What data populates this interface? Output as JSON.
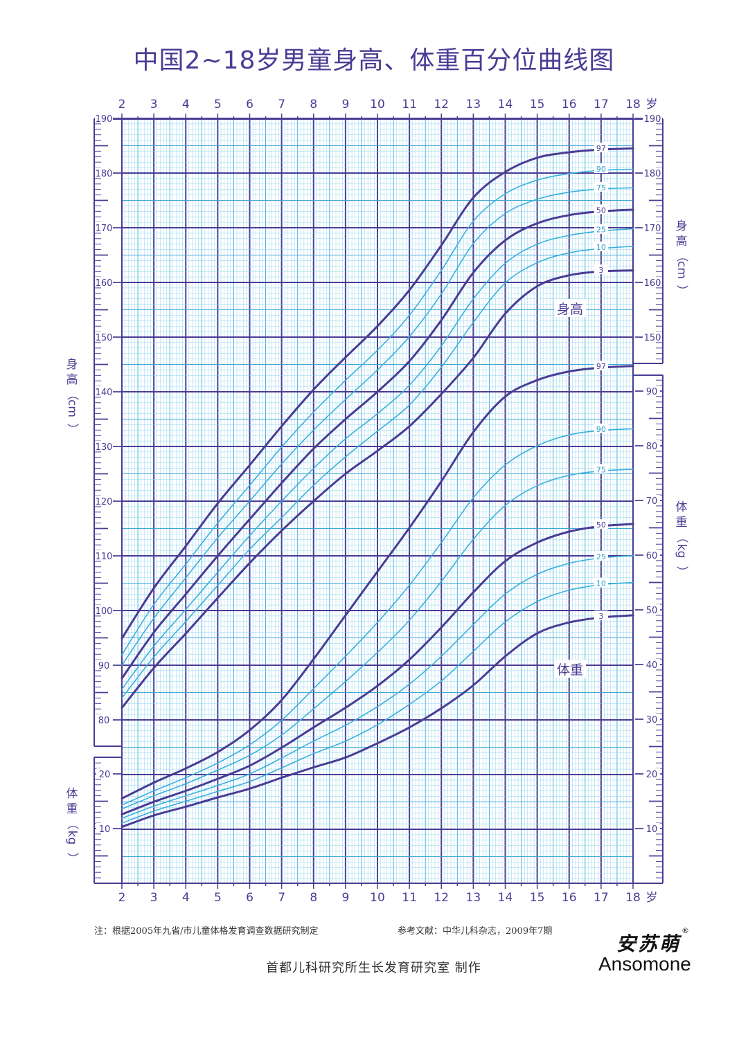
{
  "title": "中国2~18岁男童身高、体重百分位曲线图",
  "note": "注：根据2005年九省/市儿童体格发育调查数据研究制定",
  "reference": "参考文献：中华儿科杂志，2009年7期",
  "maker": "首都儿科研究所生长发育研究室  制作",
  "brand": {
    "cn": "安苏萌",
    "reg": "®",
    "en": "Ansomone"
  },
  "colors": {
    "major": "#4a3c94",
    "minor": "#3ab0dd",
    "grid": "#8fd3ef",
    "background": "#ffffff"
  },
  "chart_data": {
    "type": "line",
    "x": {
      "ticks": [
        2,
        3,
        4,
        5,
        6,
        7,
        8,
        9,
        10,
        11,
        12,
        13,
        14,
        15,
        16,
        17,
        18
      ],
      "unit": "岁",
      "range": [
        2,
        18
      ]
    },
    "height_axis": {
      "label_chars": [
        "身",
        "高",
        "（",
        "cm",
        "）"
      ],
      "range": [
        75,
        190
      ],
      "ticks_left": [
        80,
        90,
        100,
        110,
        120,
        130,
        140,
        150,
        160,
        170,
        180,
        190
      ],
      "ticks_right": [
        150,
        160,
        170,
        180,
        190
      ]
    },
    "weight_axis": {
      "label_chars": [
        "体",
        "重",
        "（",
        "kg",
        "）"
      ],
      "range": [
        0,
        95
      ],
      "ticks_left": [
        10,
        20
      ],
      "ticks_right": [
        10,
        20,
        30,
        40,
        50,
        60,
        70,
        80,
        90
      ]
    },
    "curve_label_height": "身高",
    "curve_label_weight": "体重",
    "ages": [
      2,
      3,
      4,
      5,
      6,
      7,
      8,
      9,
      10,
      11,
      12,
      13,
      14,
      15,
      16,
      17,
      18
    ],
    "height_series": [
      {
        "name": "97",
        "values": [
          94.9,
          104.1,
          111.8,
          119.6,
          126.6,
          133.7,
          140.4,
          146.3,
          152.0,
          158.6,
          166.8,
          175.5,
          180.2,
          182.8,
          183.8,
          184.3,
          184.5
        ]
      },
      {
        "name": "90",
        "values": [
          91.9,
          101.1,
          108.5,
          116.0,
          122.9,
          129.9,
          136.3,
          142.1,
          147.6,
          154.0,
          162.2,
          171.2,
          176.2,
          178.7,
          179.9,
          180.5,
          180.7
        ]
      },
      {
        "name": "75",
        "values": [
          90.0,
          98.6,
          106.0,
          113.3,
          120.0,
          126.8,
          133.0,
          138.6,
          144.0,
          150.1,
          157.9,
          167.1,
          172.6,
          175.2,
          176.5,
          177.1,
          177.3
        ]
      },
      {
        "name": "50",
        "values": [
          87.6,
          96.0,
          103.0,
          110.0,
          116.7,
          123.3,
          129.6,
          135.0,
          140.0,
          145.6,
          153.1,
          161.8,
          167.7,
          170.8,
          172.3,
          173.0,
          173.3
        ]
      },
      {
        "name": "25",
        "values": [
          85.6,
          93.5,
          100.2,
          107.0,
          113.7,
          120.0,
          126.0,
          131.4,
          136.0,
          141.2,
          148.4,
          157.0,
          163.5,
          167.0,
          168.6,
          169.4,
          169.8
        ]
      },
      {
        "name": "10",
        "values": [
          84.0,
          91.5,
          98.0,
          104.6,
          111.2,
          117.0,
          122.9,
          128.1,
          132.8,
          137.6,
          144.5,
          152.7,
          159.9,
          163.6,
          165.4,
          166.2,
          166.6
        ]
      },
      {
        "name": "3",
        "values": [
          82.2,
          89.5,
          95.8,
          102.3,
          108.7,
          114.6,
          120.0,
          125.0,
          129.2,
          133.7,
          139.6,
          146.2,
          154.3,
          159.3,
          161.3,
          162.0,
          162.2
        ]
      }
    ],
    "weight_series": [
      {
        "name": "97",
        "values": [
          15.5,
          18.4,
          21.0,
          24.0,
          28.0,
          33.5,
          41.0,
          49.0,
          57.0,
          65.0,
          73.5,
          82.5,
          89.0,
          92.0,
          93.6,
          94.3,
          94.6
        ]
      },
      {
        "name": "90",
        "values": [
          14.3,
          16.9,
          19.3,
          22.0,
          25.3,
          29.8,
          35.6,
          41.5,
          47.7,
          54.5,
          62.3,
          70.5,
          76.5,
          80.0,
          82.0,
          82.8,
          83.1
        ]
      },
      {
        "name": "75",
        "values": [
          13.6,
          16.0,
          18.2,
          20.7,
          23.4,
          27.1,
          31.9,
          36.9,
          42.2,
          48.1,
          55.2,
          62.9,
          69.1,
          72.7,
          74.6,
          75.4,
          75.7
        ]
      },
      {
        "name": "50",
        "values": [
          12.6,
          14.9,
          16.9,
          19.1,
          21.5,
          24.8,
          28.5,
          32.1,
          36.1,
          40.9,
          46.8,
          53.2,
          58.9,
          62.3,
          64.3,
          65.3,
          65.7
        ]
      },
      {
        "name": "25",
        "values": [
          11.9,
          14.1,
          16.0,
          17.9,
          20.0,
          22.9,
          26.0,
          28.9,
          32.3,
          36.4,
          41.5,
          47.3,
          52.9,
          56.5,
          58.5,
          59.5,
          59.9
        ]
      },
      {
        "name": "10",
        "values": [
          11.0,
          13.2,
          15.0,
          16.8,
          18.6,
          21.1,
          23.7,
          26.0,
          29.0,
          32.7,
          37.0,
          42.4,
          47.8,
          51.5,
          53.6,
          54.6,
          55.0
        ]
      },
      {
        "name": "3",
        "values": [
          10.3,
          12.4,
          14.0,
          15.7,
          17.3,
          19.3,
          21.2,
          23.0,
          25.6,
          28.5,
          32.0,
          36.2,
          41.5,
          45.7,
          47.7,
          48.6,
          49.0
        ]
      }
    ],
    "grid": true,
    "legend": "inline-right"
  }
}
